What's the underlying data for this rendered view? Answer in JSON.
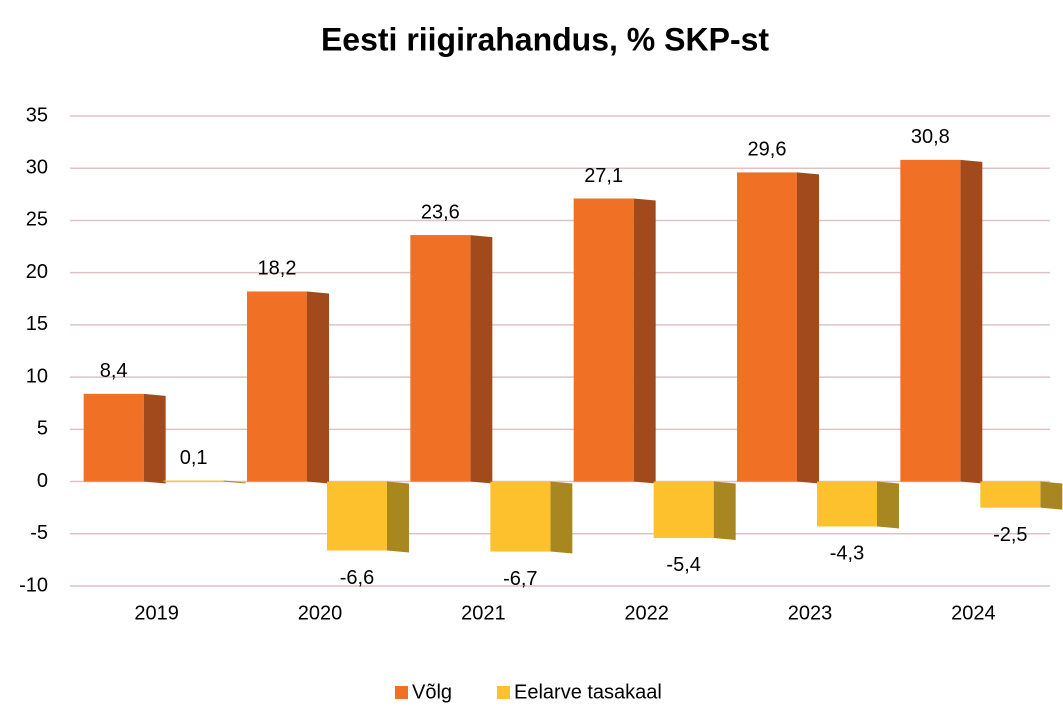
{
  "chart_data": {
    "type": "bar",
    "title": "Eesti riigirahandus, % SKP-st",
    "categories": [
      "2019",
      "2020",
      "2021",
      "2022",
      "2023",
      "2024"
    ],
    "series": [
      {
        "name": "Võlg",
        "color": "#f07026",
        "side_color": "#a34a1c",
        "values": [
          8.4,
          18.2,
          23.6,
          27.1,
          29.6,
          30.8
        ],
        "value_labels": [
          "8,4",
          "18,2",
          "23,6",
          "27,1",
          "29,6",
          "30,8"
        ]
      },
      {
        "name": "Eelarve tasakaal",
        "color": "#fcc12d",
        "side_color": "#a98720",
        "values": [
          0.1,
          -6.6,
          -6.7,
          -5.4,
          -4.3,
          -2.5
        ],
        "value_labels": [
          "0,1",
          "-6,6",
          "-6,7",
          "-5,4",
          "-4,3",
          "-2,5"
        ]
      }
    ],
    "ylim": [
      -10,
      35
    ],
    "yticks": [
      -10,
      -5,
      0,
      5,
      10,
      15,
      20,
      25,
      30,
      35
    ],
    "grid": true
  }
}
